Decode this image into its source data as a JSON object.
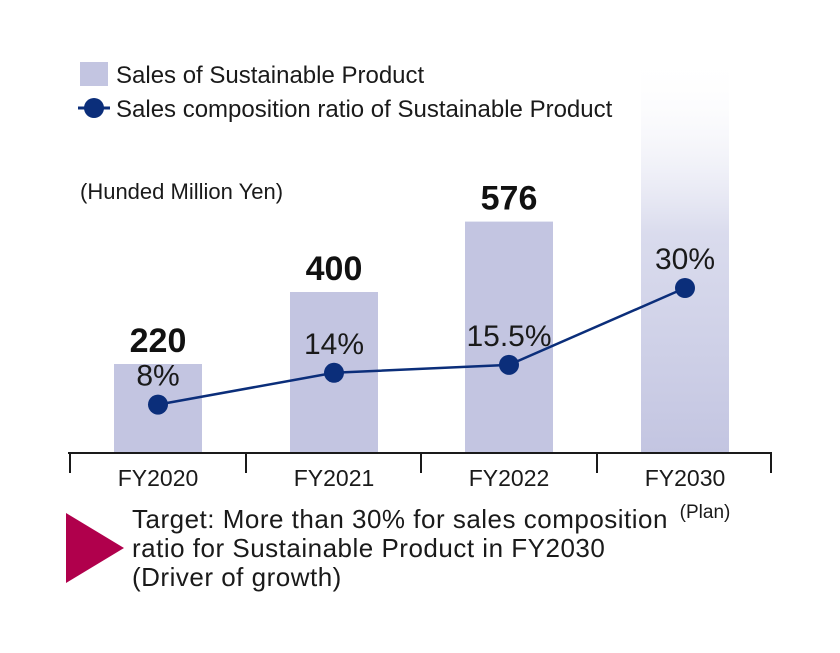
{
  "chart_data": {
    "type": "bar",
    "categories": [
      "FY2020",
      "FY2021",
      "FY2022",
      "FY2030"
    ],
    "category_notes": [
      "",
      "",
      "",
      "(Plan)"
    ],
    "unit_label": "(Hunded Million Yen)",
    "series": [
      {
        "name": "Sales of Sustainable Product",
        "kind": "bar",
        "values": [
          220,
          400,
          576,
          null
        ],
        "value_labels": [
          "220",
          "400",
          "576",
          ""
        ],
        "color": "#c3c5e1"
      },
      {
        "name": "Sales composition ratio of Sustainable Product",
        "kind": "line",
        "values": [
          8,
          14,
          15.5,
          30
        ],
        "value_labels": [
          "8%",
          "14%",
          "15.5%",
          "30%"
        ],
        "color": "#0b2e7a"
      }
    ],
    "planned_bar": {
      "category": "FY2030",
      "style": "gradient fading upward"
    },
    "legend_position": "top-left",
    "grid": false
  },
  "target_note": "Target: More than 30% for sales composition ratio for Sustainable Product in FY2030 (Driver of growth)",
  "colors": {
    "bar": "#c3c5e1",
    "line": "#0b2e7a",
    "arrow": "#b0004c"
  }
}
